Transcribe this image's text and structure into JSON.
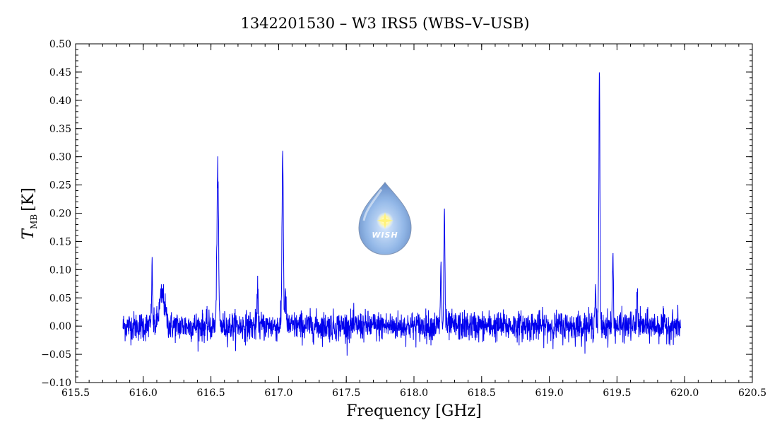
{
  "chart_data": {
    "type": "line",
    "title": "1342201530 – W3 IRS5 (WBS–V–USB)",
    "xlabel": "Frequency [GHz]",
    "ylabel_main": "T",
    "ylabel_sub": "MB",
    "ylabel_unit": "[K]",
    "xlim": [
      615.5,
      620.5
    ],
    "ylim": [
      -0.1,
      0.5
    ],
    "x_ticks": [
      615.5,
      616.0,
      616.5,
      617.0,
      617.5,
      618.0,
      618.5,
      619.0,
      619.5,
      620.0,
      620.5
    ],
    "x_tick_labels": [
      "615.5",
      "616.0",
      "616.5",
      "617.0",
      "617.5",
      "618.0",
      "618.5",
      "619.0",
      "619.5",
      "620.0",
      "620.5"
    ],
    "y_ticks": [
      -0.1,
      -0.05,
      0.0,
      0.05,
      0.1,
      0.15,
      0.2,
      0.25,
      0.3,
      0.35,
      0.4,
      0.45,
      0.5
    ],
    "y_tick_labels": [
      "−0.10",
      "−0.05",
      "0.00",
      "0.05",
      "0.10",
      "0.15",
      "0.20",
      "0.25",
      "0.30",
      "0.35",
      "0.40",
      "0.45",
      "0.50"
    ],
    "x_range_data": [
      615.85,
      619.97
    ],
    "noise_rms": 0.013,
    "series_color": "#0000ee",
    "grid": false,
    "lines": [
      {
        "x": 616.065,
        "peak": 0.1,
        "width": 0.004
      },
      {
        "x": 616.14,
        "peak": 0.055,
        "width": 0.02
      },
      {
        "x": 616.55,
        "peak": 0.28,
        "width": 0.006
      },
      {
        "x": 616.845,
        "peak": 0.06,
        "width": 0.004
      },
      {
        "x": 617.03,
        "peak": 0.31,
        "width": 0.005
      },
      {
        "x": 617.05,
        "peak": 0.05,
        "width": 0.005
      },
      {
        "x": 618.2,
        "peak": 0.1,
        "width": 0.004
      },
      {
        "x": 618.225,
        "peak": 0.2,
        "width": 0.004
      },
      {
        "x": 619.34,
        "peak": 0.07,
        "width": 0.004
      },
      {
        "x": 619.37,
        "peak": 0.44,
        "width": 0.004
      },
      {
        "x": 619.47,
        "peak": 0.12,
        "width": 0.004
      },
      {
        "x": 619.65,
        "peak": 0.06,
        "width": 0.004
      }
    ]
  },
  "logo": {
    "name": "wish-logo",
    "text": "WISH"
  }
}
